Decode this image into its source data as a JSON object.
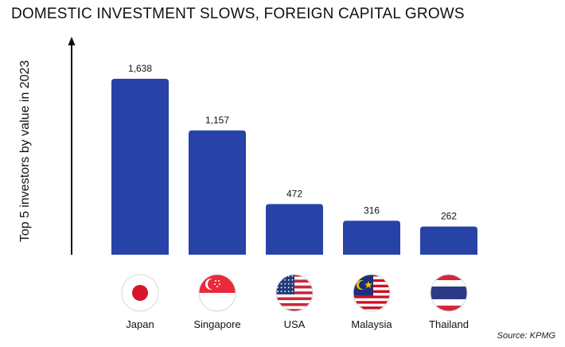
{
  "chart_data": {
    "type": "bar",
    "title": "DOMESTIC INVESTMENT SLOWS, FOREIGN CAPITAL GROWS",
    "ylabel": "Top 5 investors by value in 2023",
    "xlabel": "",
    "categories": [
      "Japan",
      "Singapore",
      "USA",
      "Malaysia",
      "Thailand"
    ],
    "values": [
      1638,
      1157,
      472,
      316,
      262
    ],
    "value_labels": [
      "1,638",
      "1,157",
      "472",
      "316",
      "262"
    ],
    "ylim": [
      0,
      1638
    ],
    "bar_color": "#2743a8",
    "grid": false,
    "axis_arrow": true,
    "source": "Source: KPMG"
  },
  "flags": [
    "japan-flag-icon",
    "singapore-flag-icon",
    "usa-flag-icon",
    "malaysia-flag-icon",
    "thailand-flag-icon"
  ]
}
